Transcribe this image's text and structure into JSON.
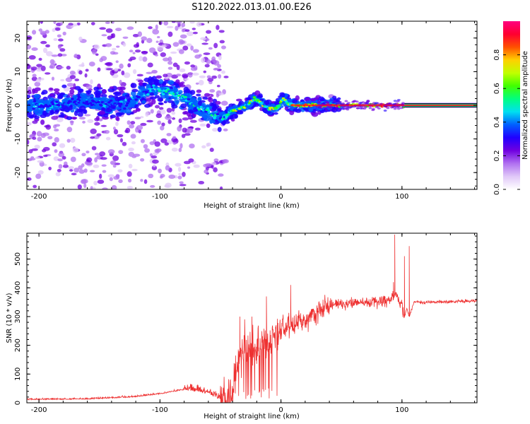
{
  "title": "S120.2022.013.01.00.E26",
  "chart_data": [
    {
      "type": "heatmap",
      "xlabel": "Height of straight line (km)",
      "ylabel": "Frequency (Hz)",
      "xlim": [
        -210,
        162
      ],
      "ylim": [
        -25,
        25
      ],
      "x_ticks": [
        -200,
        -100,
        0,
        100
      ],
      "y_ticks": [
        -20,
        -10,
        0,
        10,
        20
      ],
      "colorbar": {
        "label": "Normalized spectral amplitude",
        "range": [
          0,
          1
        ],
        "ticks": [
          "0.0",
          "0.2",
          "0.4",
          "0.6",
          "0.8"
        ],
        "colormap": [
          "#ffffff",
          "#e0c8f8",
          "#b070f0",
          "#7000e0",
          "#2000ff",
          "#0060ff",
          "#00e0f0",
          "#00ff80",
          "#40ff00",
          "#c0ff00",
          "#ffd000",
          "#ff5000",
          "#ff0030",
          "#ff0080"
        ]
      },
      "ridge": {
        "x": [
          -210,
          -190,
          -170,
          -150,
          -130,
          -115,
          -105,
          -95,
          -85,
          -75,
          -65,
          -55,
          -48,
          -42,
          -35,
          -28,
          -22,
          -18,
          -14,
          -10,
          -6,
          -2,
          2,
          8,
          20,
          40,
          60,
          80,
          100,
          102,
          110,
          130,
          162
        ],
        "y": [
          0,
          0,
          1,
          1,
          0,
          3,
          5,
          4,
          3,
          1,
          -1,
          -3,
          -4,
          -2,
          -1,
          0,
          2,
          1,
          0,
          -1,
          -1,
          0,
          2,
          0,
          0,
          0,
          0,
          0,
          0,
          -1,
          0,
          0,
          0
        ]
      }
    },
    {
      "type": "line",
      "xlabel": "Height of straight line (km)",
      "ylabel": "SNR (10 * v/v)",
      "xlim": [
        -210,
        162
      ],
      "ylim": [
        0,
        590
      ],
      "x_ticks": [
        -200,
        -100,
        0,
        100
      ],
      "y_ticks": [
        0,
        100,
        200,
        300,
        400,
        500
      ],
      "color": "#ee3030",
      "envelope": {
        "x": [
          -210,
          -160,
          -120,
          -100,
          -80,
          -60,
          -50,
          -40,
          -36,
          -30,
          -20,
          -10,
          0,
          10,
          20,
          30,
          40,
          50,
          60,
          70,
          80,
          90,
          95,
          100,
          102,
          104,
          106,
          110,
          120,
          140,
          162
        ],
        "y": [
          10,
          12,
          20,
          30,
          45,
          30,
          10,
          40,
          150,
          180,
          200,
          220,
          260,
          270,
          290,
          320,
          340,
          345,
          350,
          350,
          350,
          360,
          380,
          330,
          300,
          330,
          300,
          350,
          350,
          352,
          355
        ]
      },
      "spikes": {
        "x": [
          -34,
          -30,
          -24,
          -12,
          8,
          93,
          94,
          102,
          106
        ],
        "y": [
          300,
          290,
          300,
          370,
          410,
          420,
          585,
          510,
          545
        ]
      }
    }
  ]
}
